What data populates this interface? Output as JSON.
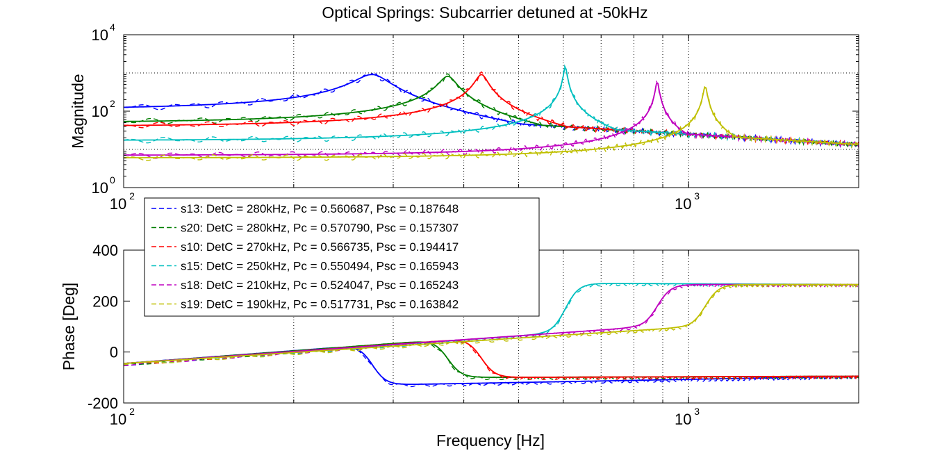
{
  "chart_data": {
    "title": "Optical Springs: Subcarrier detuned at -50kHz",
    "xlabel": "Frequency [Hz]",
    "x_scale": "log",
    "xlim": [
      100,
      2000
    ],
    "x_ticks": [
      {
        "value": 100,
        "base": "10",
        "exp": "2"
      },
      {
        "value": 1000,
        "base": "10",
        "exp": "3"
      }
    ],
    "colors": {
      "s13": "#0000ff",
      "s20": "#007f00",
      "s10": "#ff0000",
      "s15": "#00bfbf",
      "s18": "#bf00bf",
      "s19": "#bfbf00"
    },
    "legend_placement": "upper-left, between panels",
    "grid": "vertical dotted",
    "panels": [
      {
        "type": "line",
        "ylabel": "Magnitude",
        "y_scale": "log",
        "ylim": [
          1,
          10000
        ],
        "y_ticks": [
          {
            "value": 1,
            "base": "10",
            "exp": "0"
          },
          {
            "value": 100,
            "base": "10",
            "exp": "2"
          },
          {
            "value": 10000,
            "base": "10",
            "exp": "4"
          }
        ]
      },
      {
        "type": "line",
        "ylabel": "Phase [Deg]",
        "y_scale": "linear",
        "ylim": [
          -200,
          400
        ],
        "y_ticks": [
          {
            "value": -200,
            "label": "-200"
          },
          {
            "value": 0,
            "label": "0"
          },
          {
            "value": 200,
            "label": "200"
          },
          {
            "value": 400,
            "label": "400"
          }
        ]
      }
    ],
    "series": [
      {
        "id": "s13",
        "label": "s13: DetC = 280kHz, Pc = 0.560687, Psc = 0.187648",
        "f0": 276,
        "peak": 2000,
        "low": 110,
        "phase_start": -45,
        "phase_top": 25,
        "phase_drop": -130,
        "phase_end": -95
      },
      {
        "id": "s20",
        "label": "s20: DetC = 280kHz, Pc = 0.570790, Psc = 0.157307",
        "f0": 375,
        "peak": 1800,
        "low": 50,
        "phase_start": -45,
        "phase_top": 45,
        "phase_drop": -100,
        "phase_end": -95
      },
      {
        "id": "s10",
        "label": "s10: DetC = 270kHz, Pc = 0.566735, Psc = 0.194417",
        "f0": 430,
        "peak": 2000,
        "low": 40,
        "phase_start": -45,
        "phase_top": 50,
        "phase_drop": -100,
        "phase_end": -95
      },
      {
        "id": "s15",
        "label": "s15: DetC = 250kHz, Pc = 0.550494, Psc = 0.165943",
        "f0": 605,
        "peak": 3200,
        "low": 17,
        "phase_start": -45,
        "phase_top": 70,
        "phase_drop": 270,
        "phase_end": 265
      },
      {
        "id": "s18",
        "label": "s18: DetC = 210kHz, Pc = 0.524047, Psc = 0.165243",
        "f0": 880,
        "peak": 1300,
        "low": 7,
        "phase_start": -45,
        "phase_top": 95,
        "phase_drop": 265,
        "phase_end": 265
      },
      {
        "id": "s19",
        "label": "s19: DetC = 190kHz, Pc = 0.517731, Psc = 0.163842",
        "f0": 1070,
        "peak": 1000,
        "low": 6,
        "phase_start": -45,
        "phase_top": 95,
        "phase_drop": 265,
        "phase_end": 265
      }
    ]
  }
}
